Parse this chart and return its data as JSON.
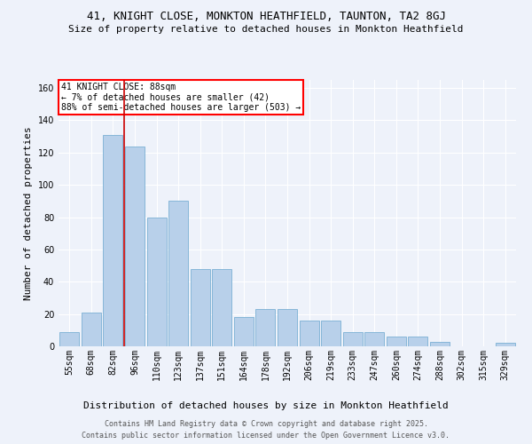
{
  "title1": "41, KNIGHT CLOSE, MONKTON HEATHFIELD, TAUNTON, TA2 8GJ",
  "title2": "Size of property relative to detached houses in Monkton Heathfield",
  "xlabel": "Distribution of detached houses by size in Monkton Heathfield",
  "ylabel": "Number of detached properties",
  "annotation_line1": "41 KNIGHT CLOSE: 88sqm",
  "annotation_line2": "← 7% of detached houses are smaller (42)",
  "annotation_line3": "88% of semi-detached houses are larger (503) →",
  "footer1": "Contains HM Land Registry data © Crown copyright and database right 2025.",
  "footer2": "Contains public sector information licensed under the Open Government Licence v3.0.",
  "categories": [
    "55sqm",
    "68sqm",
    "82sqm",
    "96sqm",
    "110sqm",
    "123sqm",
    "137sqm",
    "151sqm",
    "164sqm",
    "178sqm",
    "192sqm",
    "206sqm",
    "219sqm",
    "233sqm",
    "247sqm",
    "260sqm",
    "274sqm",
    "288sqm",
    "302sqm",
    "315sqm",
    "329sqm"
  ],
  "values": [
    9,
    21,
    131,
    124,
    80,
    90,
    48,
    48,
    18,
    23,
    23,
    16,
    16,
    9,
    9,
    6,
    6,
    3,
    0,
    0,
    2
  ],
  "bar_color": "#b8d0ea",
  "bar_edge_color": "#7aafd4",
  "vline_color": "#cc0000",
  "vline_pos": 2.5,
  "background_color": "#eef2fa",
  "grid_color": "#ffffff",
  "ylim": [
    0,
    165
  ],
  "yticks": [
    0,
    20,
    40,
    60,
    80,
    100,
    120,
    140,
    160
  ],
  "title1_fontsize": 9,
  "title2_fontsize": 8,
  "xlabel_fontsize": 8,
  "ylabel_fontsize": 8,
  "tick_fontsize": 7,
  "annot_fontsize": 7,
  "footer_fontsize": 6
}
